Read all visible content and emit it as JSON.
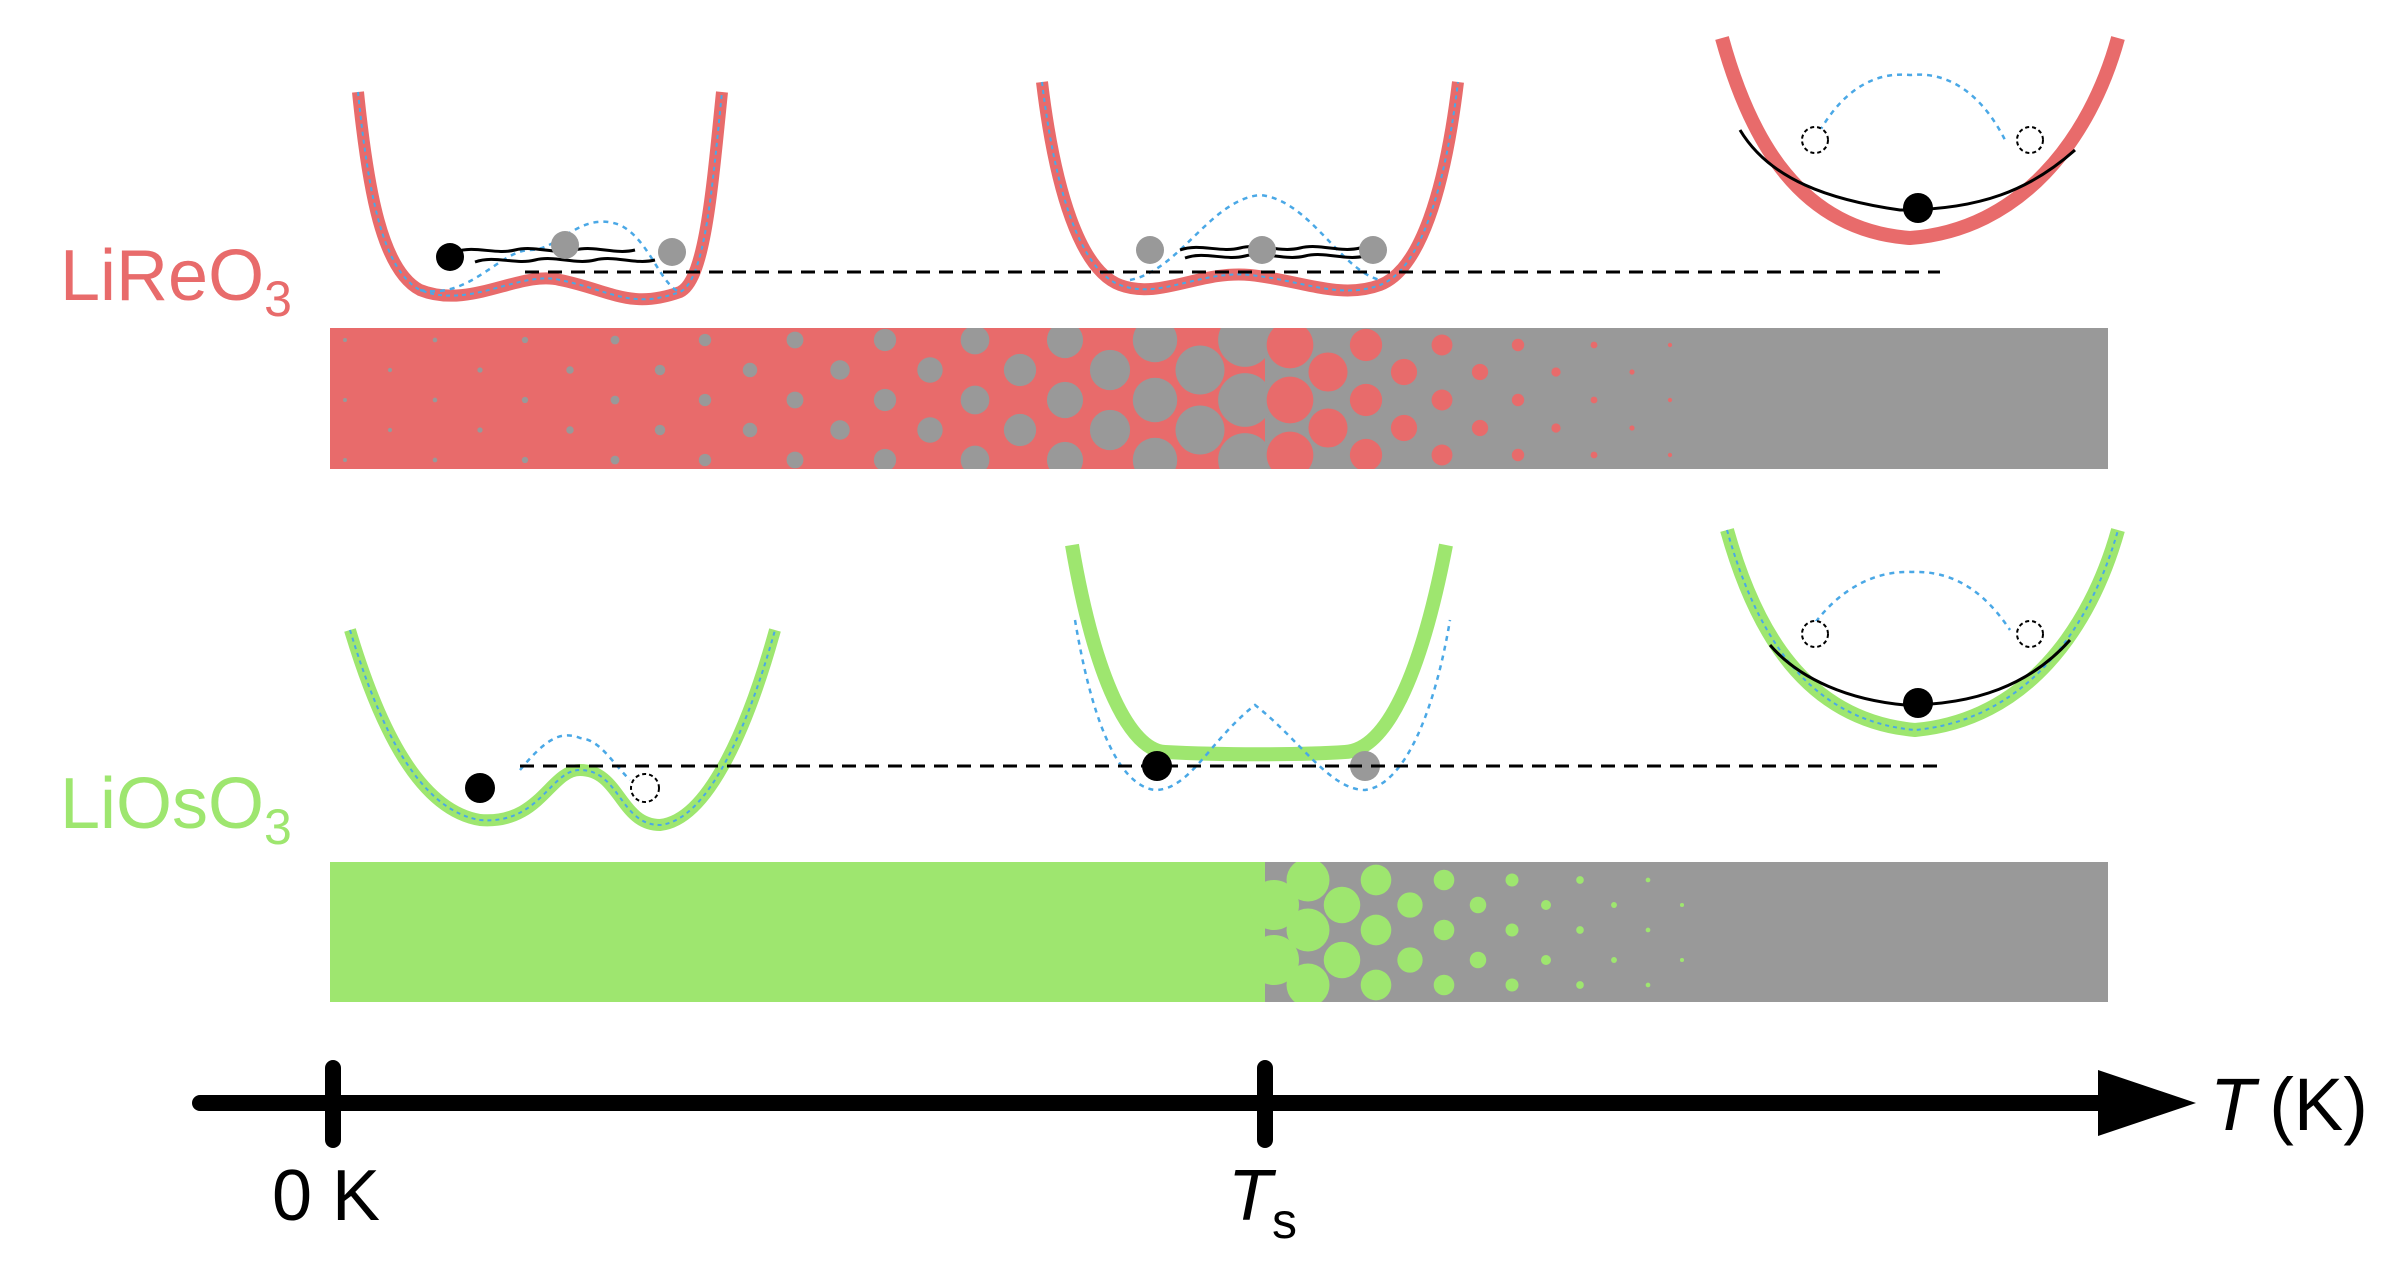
{
  "materials": [
    {
      "id": "lireo3",
      "name": "LiReO",
      "subscript": "3",
      "color": "#e86b6b"
    },
    {
      "id": "liosO3",
      "name": "LiOsO",
      "subscript": "3",
      "color": "#9ee66f"
    }
  ],
  "colors": {
    "gray": "#999999",
    "red": "#e86b6b",
    "green": "#9ee66f",
    "dotted_curve": "#4aa8e6",
    "black": "#000000"
  },
  "axis": {
    "label_T": "T",
    "label_unit": "(K)",
    "tick_zero": "0 K",
    "tick_ts_main": "T",
    "tick_ts_sub": "s"
  }
}
